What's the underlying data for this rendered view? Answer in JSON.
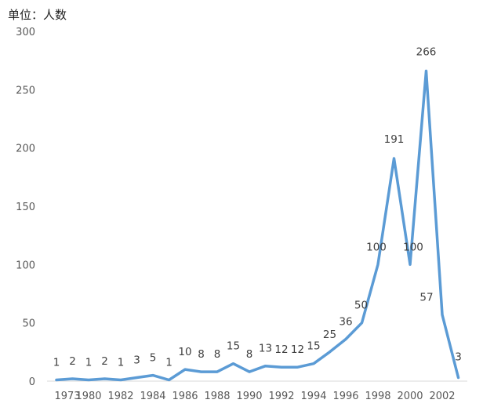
{
  "unit_label": "单位：人数",
  "chart_data": {
    "type": "line",
    "title": "",
    "xlabel": "",
    "ylabel": "",
    "ylim": [
      0,
      300
    ],
    "yticks": [
      0,
      50,
      100,
      150,
      200,
      250,
      300
    ],
    "x_tick_labels": [
      "1973",
      "1980",
      "1982",
      "1984",
      "1986",
      "1988",
      "1990",
      "1992",
      "1994",
      "1996",
      "1998",
      "2000",
      "2002"
    ],
    "grid": false,
    "legend": "none",
    "line_color": "#5B9BD5",
    "series": [
      {
        "values": [
          1,
          2,
          1,
          2,
          1,
          3,
          5,
          1,
          10,
          8,
          8,
          15,
          8,
          13,
          12,
          12,
          15,
          25,
          36,
          50,
          100,
          191,
          100,
          266,
          57,
          3
        ],
        "labels": [
          "1",
          "2",
          "1",
          "2",
          "1",
          "3",
          "5",
          "1",
          "10",
          "8",
          "8",
          "15",
          "8",
          "13",
          "12",
          "12",
          "15",
          "25",
          "36",
          "50",
          "100",
          "191",
          "100",
          "266",
          "57",
          "3"
        ]
      }
    ]
  }
}
